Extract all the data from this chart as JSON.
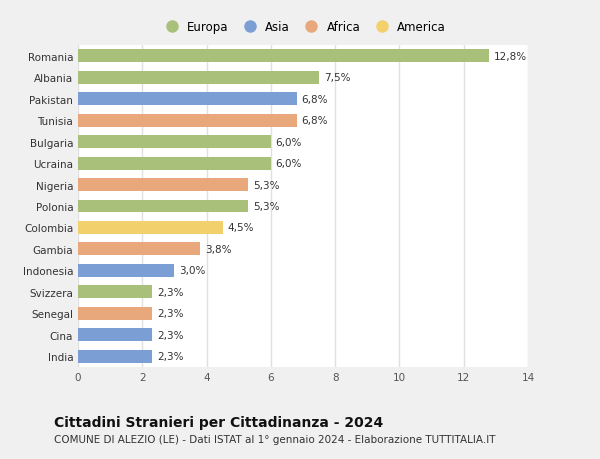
{
  "countries": [
    "Romania",
    "Albania",
    "Pakistan",
    "Tunisia",
    "Bulgaria",
    "Ucraina",
    "Nigeria",
    "Polonia",
    "Colombia",
    "Gambia",
    "Indonesia",
    "Svizzera",
    "Senegal",
    "Cina",
    "India"
  ],
  "values": [
    12.8,
    7.5,
    6.8,
    6.8,
    6.0,
    6.0,
    5.3,
    5.3,
    4.5,
    3.8,
    3.0,
    2.3,
    2.3,
    2.3,
    2.3
  ],
  "labels": [
    "12,8%",
    "7,5%",
    "6,8%",
    "6,8%",
    "6,0%",
    "6,0%",
    "5,3%",
    "5,3%",
    "4,5%",
    "3,8%",
    "3,0%",
    "2,3%",
    "2,3%",
    "2,3%",
    "2,3%"
  ],
  "continents": [
    "Europa",
    "Europa",
    "Asia",
    "Africa",
    "Europa",
    "Europa",
    "Africa",
    "Europa",
    "America",
    "Africa",
    "Asia",
    "Europa",
    "Africa",
    "Asia",
    "Asia"
  ],
  "continent_colors": {
    "Europa": "#a8c07a",
    "Asia": "#7b9fd4",
    "Africa": "#e8a87c",
    "America": "#f2d06b"
  },
  "legend_order": [
    "Europa",
    "Asia",
    "Africa",
    "America"
  ],
  "xlim": [
    0,
    14
  ],
  "xticks": [
    0,
    2,
    4,
    6,
    8,
    10,
    12,
    14
  ],
  "title": "Cittadini Stranieri per Cittadinanza - 2024",
  "subtitle": "COMUNE DI ALEZIO (LE) - Dati ISTAT al 1° gennaio 2024 - Elaborazione TUTTITALIA.IT",
  "fig_bg_color": "#f0f0f0",
  "plot_bg_color": "#ffffff",
  "bar_height": 0.6,
  "grid_color": "#e0e0e0",
  "title_fontsize": 10,
  "subtitle_fontsize": 7.5,
  "label_fontsize": 7.5,
  "tick_fontsize": 7.5,
  "legend_fontsize": 8.5
}
